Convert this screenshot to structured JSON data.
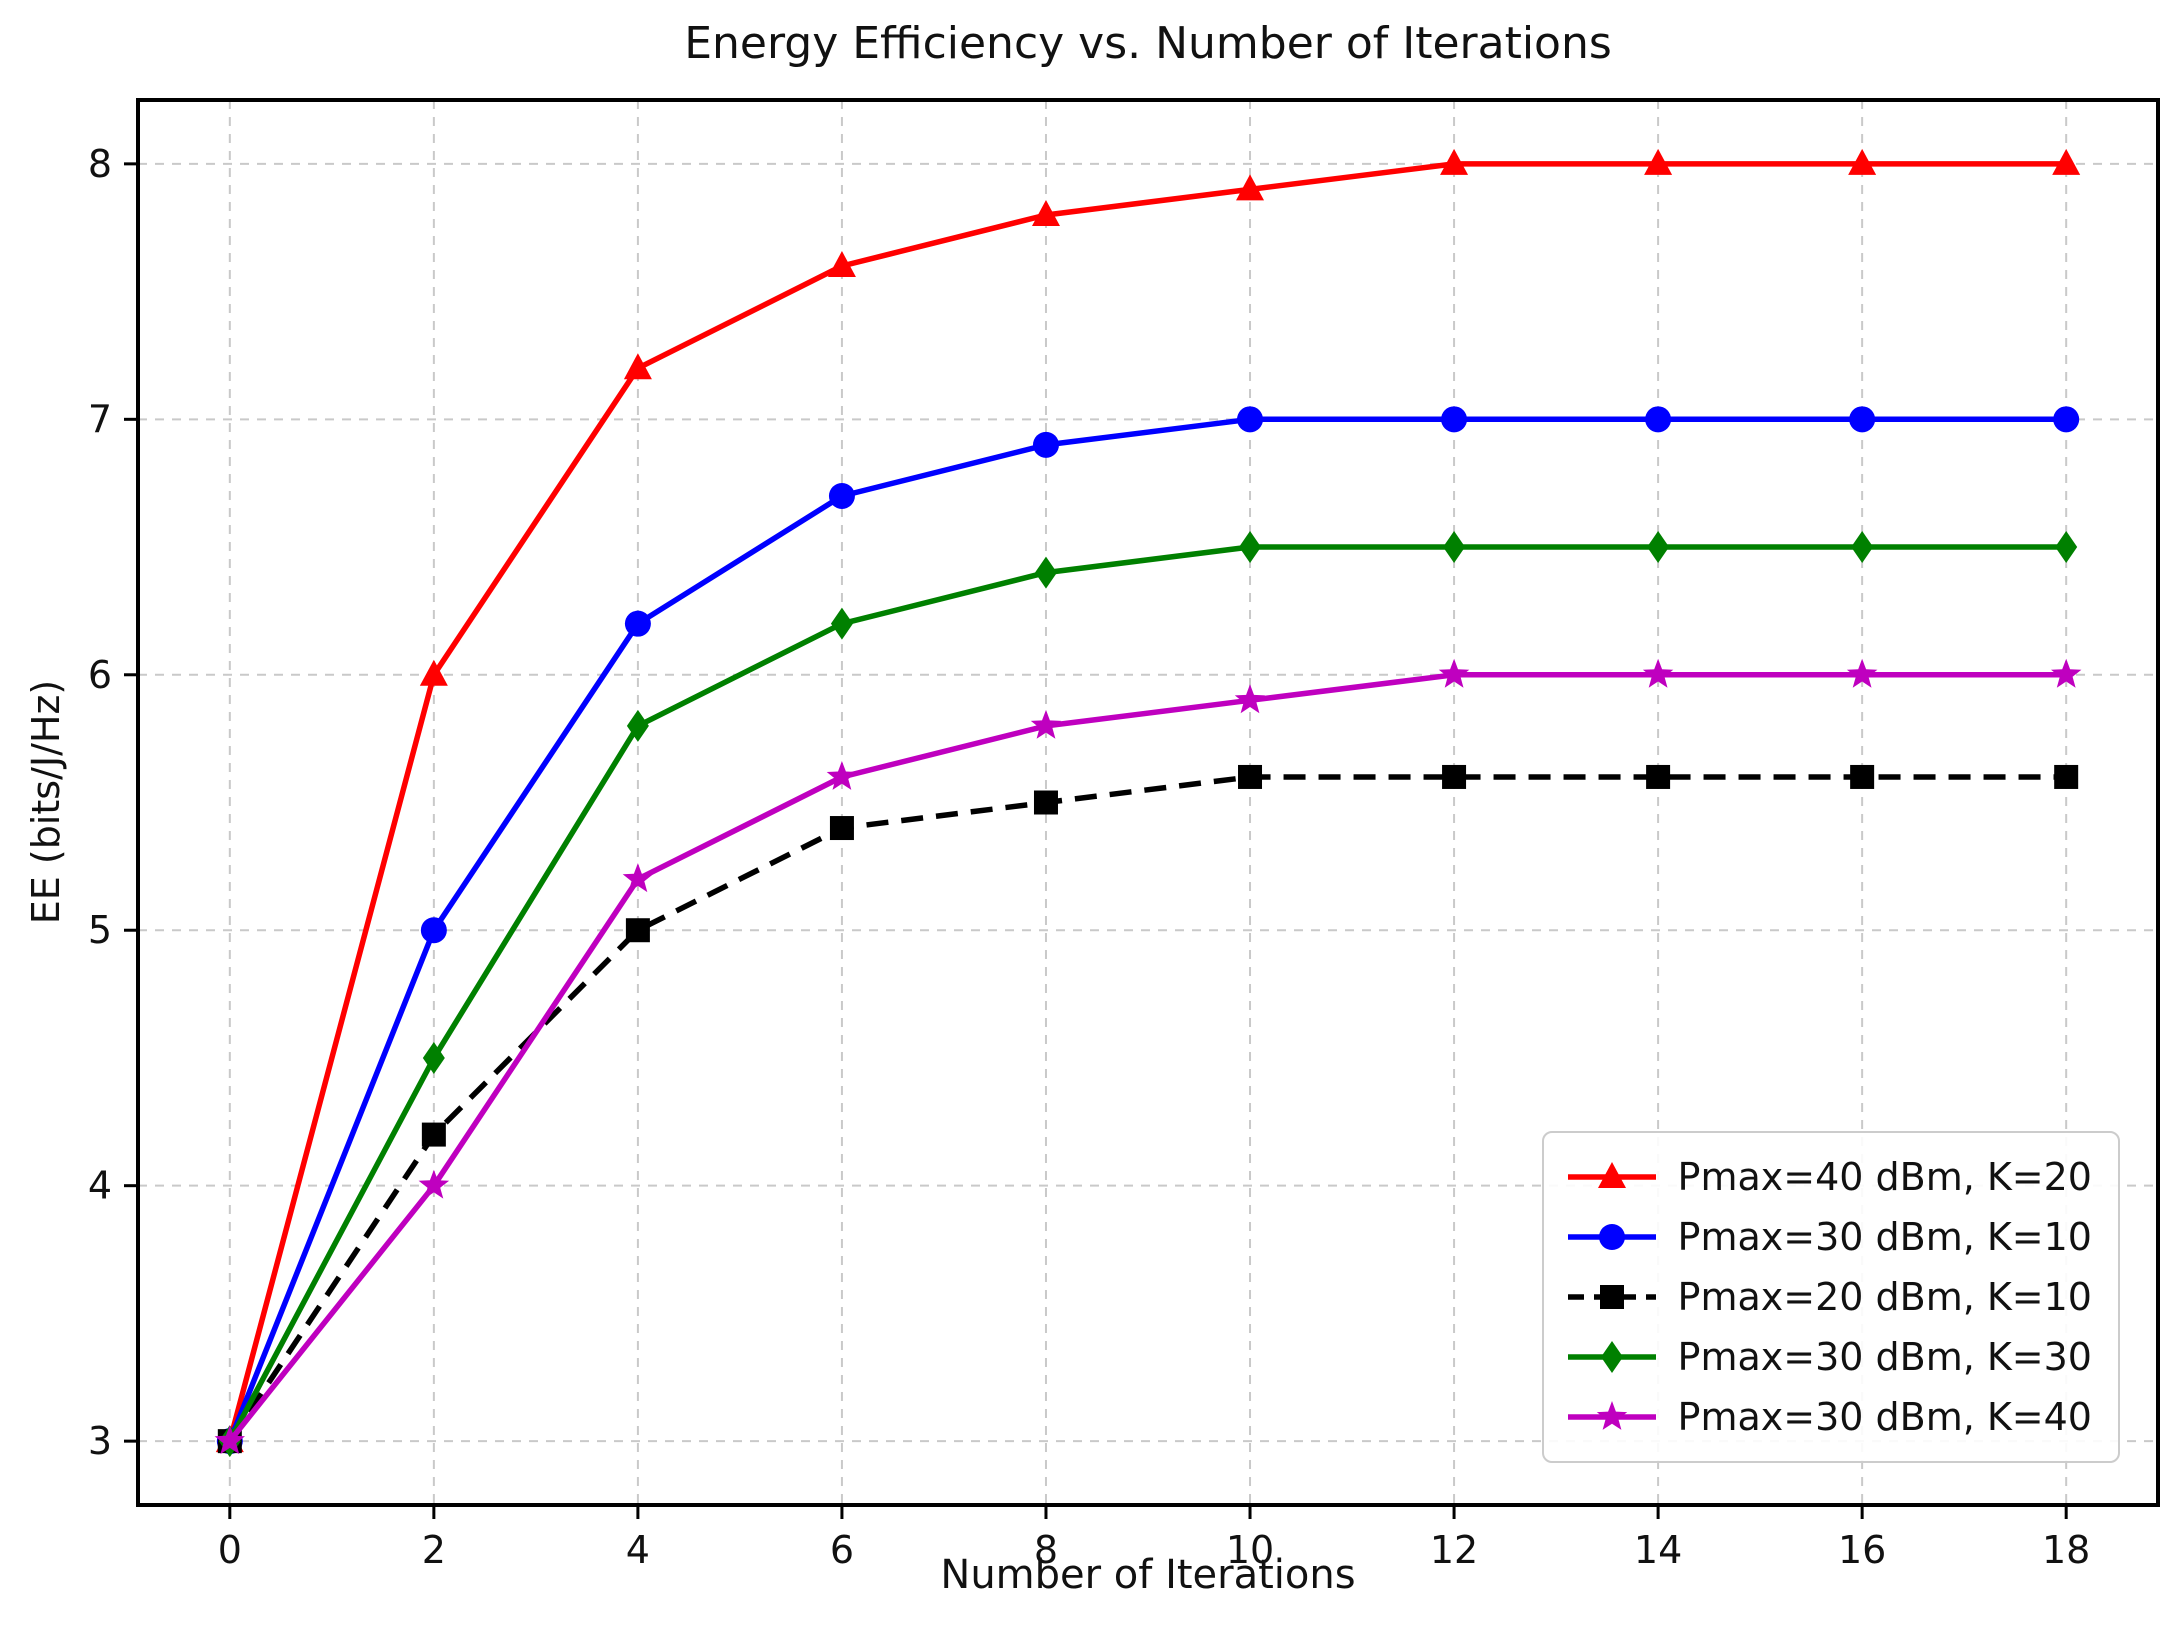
{
  "chart_data": {
    "type": "line",
    "title": "Energy Efficiency vs. Number of Iterations",
    "xlabel": "Number of Iterations",
    "ylabel": "EE (bits/J/Hz)",
    "x": [
      0,
      2,
      4,
      6,
      8,
      10,
      12,
      14,
      16,
      18
    ],
    "xticks": [
      0,
      2,
      4,
      6,
      8,
      10,
      12,
      14,
      16,
      18
    ],
    "yticks": [
      3,
      4,
      5,
      6,
      7,
      8
    ],
    "xlim": [
      -0.9,
      18.9
    ],
    "ylim": [
      2.75,
      8.25
    ],
    "grid": true,
    "grid_style": "dashed",
    "legend_position": "lower right",
    "series": [
      {
        "name": "Pmax=40 dBm, K=20",
        "color": "#ff0000",
        "marker": "triangle",
        "line_style": "solid",
        "values": [
          3.0,
          6.0,
          7.2,
          7.6,
          7.8,
          7.9,
          8.0,
          8.0,
          8.0,
          8.0
        ]
      },
      {
        "name": "Pmax=30 dBm, K=10",
        "color": "#0000ff",
        "marker": "circle",
        "line_style": "solid",
        "values": [
          3.0,
          5.0,
          6.2,
          6.7,
          6.9,
          7.0,
          7.0,
          7.0,
          7.0,
          7.0
        ]
      },
      {
        "name": "Pmax=20 dBm, K=10",
        "color": "#000000",
        "marker": "square",
        "line_style": "dashed",
        "values": [
          3.0,
          4.2,
          5.0,
          5.4,
          5.5,
          5.6,
          5.6,
          5.6,
          5.6,
          5.6
        ]
      },
      {
        "name": "Pmax=30 dBm, K=30",
        "color": "#008000",
        "marker": "diamond",
        "line_style": "solid",
        "values": [
          3.0,
          4.5,
          5.8,
          6.2,
          6.4,
          6.5,
          6.5,
          6.5,
          6.5,
          6.5
        ]
      },
      {
        "name": "Pmax=30 dBm, K=40",
        "color": "#bf00bf",
        "marker": "star",
        "line_style": "solid",
        "values": [
          3.0,
          4.0,
          5.2,
          5.6,
          5.8,
          5.9,
          6.0,
          6.0,
          6.0,
          6.0
        ]
      }
    ]
  }
}
